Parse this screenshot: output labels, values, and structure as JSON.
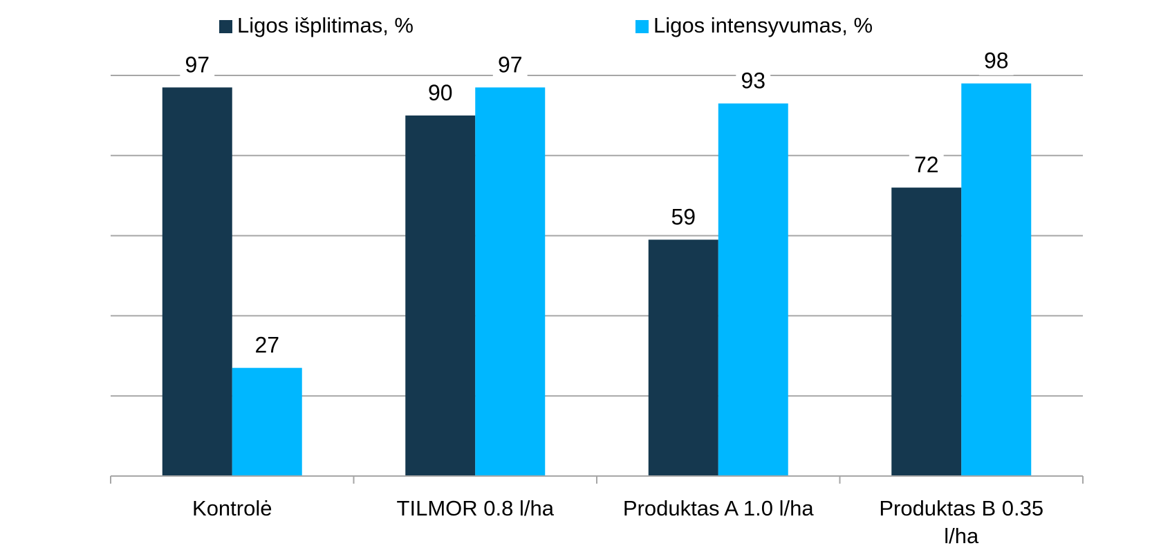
{
  "chart_data": {
    "type": "bar",
    "categories": [
      [
        "Kontrolė"
      ],
      [
        "TILMOR 0.8 l/ha"
      ],
      [
        "Produktas A 1.0 l/ha"
      ],
      [
        "Produktas B 0.35",
        "l/ha"
      ]
    ],
    "series": [
      {
        "name": "Ligos išplitimas, %",
        "color": "#15384F",
        "values": [
          97,
          90,
          59,
          72
        ]
      },
      {
        "name": "Ligos intensyvumas, %",
        "color": "#00B7FF",
        "values": [
          27,
          97,
          93,
          98
        ]
      }
    ],
    "ylim": [
      0,
      100
    ],
    "yticks": [
      0,
      20,
      40,
      60,
      80,
      100
    ],
    "grid": true,
    "gridline_color": "#A6A6A6",
    "legend_position": "top-center",
    "data_labels": true,
    "title": "",
    "xlabel": "",
    "ylabel": ""
  }
}
